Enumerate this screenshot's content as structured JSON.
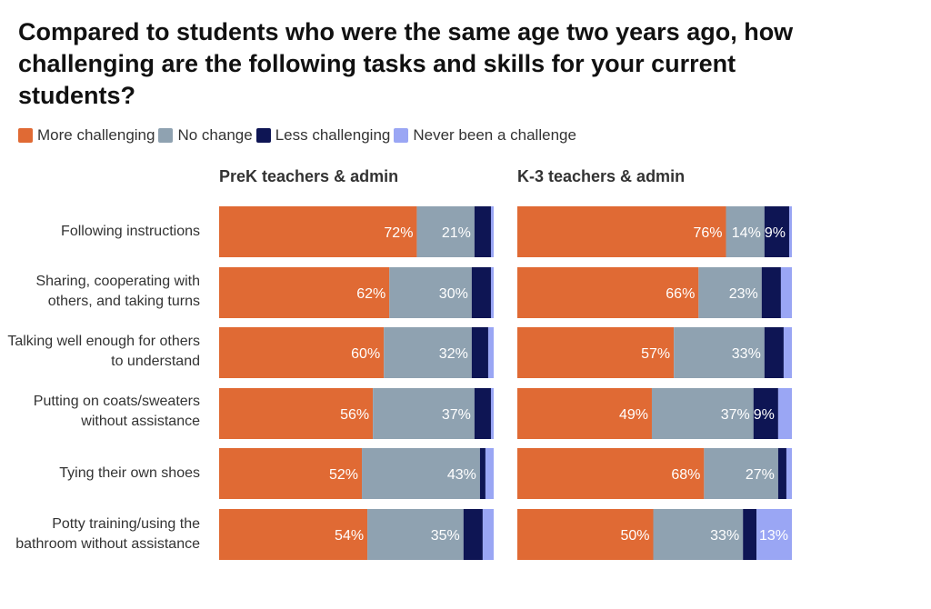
{
  "chart_data": {
    "type": "bar",
    "orientation": "horizontal",
    "stacked": true,
    "normalized": true,
    "title": "Compared to students who were the same age two years ago, how challenging are the following tasks and skills for your current students?",
    "legend": {
      "placement": "top-left",
      "entries": [
        {
          "name": "More challenging",
          "color": "#E06A34"
        },
        {
          "name": "No change",
          "color": "#8FA2B1"
        },
        {
          "name": "Less challenging",
          "color": "#0E1554"
        },
        {
          "name": "Never been a challenge",
          "color": "#9AA6F4"
        }
      ]
    },
    "categories": [
      "Following instructions",
      "Sharing, cooperating with others, and taking turns",
      "Talking well enough for others to understand",
      "Putting on coats/sweaters without assistance",
      "Tying their own shoes",
      "Potty training/using the bathroom without assistance"
    ],
    "panels": [
      {
        "title": "PreK teachers & admin",
        "series": [
          {
            "name": "More challenging",
            "values": [
              72,
              62,
              60,
              56,
              52,
              54
            ]
          },
          {
            "name": "No change",
            "values": [
              21,
              30,
              32,
              37,
              43,
              35
            ]
          },
          {
            "name": "Less challenging",
            "values": [
              6,
              7,
              6,
              6,
              2,
              7
            ]
          },
          {
            "name": "Never been a challenge",
            "values": [
              1,
              1,
              2,
              1,
              3,
              4
            ]
          }
        ]
      },
      {
        "title": "K-3 teachers & admin",
        "series": [
          {
            "name": "More challenging",
            "values": [
              76,
              66,
              57,
              49,
              68,
              50
            ]
          },
          {
            "name": "No change",
            "values": [
              14,
              23,
              33,
              37,
              27,
              33
            ]
          },
          {
            "name": "Less challenging",
            "values": [
              9,
              7,
              7,
              9,
              3,
              5
            ]
          },
          {
            "name": "Never been a challenge",
            "values": [
              1,
              4,
              3,
              5,
              2,
              13
            ]
          }
        ]
      }
    ],
    "value_suffix": "%",
    "label_min": 9,
    "xlim": [
      0,
      100
    ]
  }
}
